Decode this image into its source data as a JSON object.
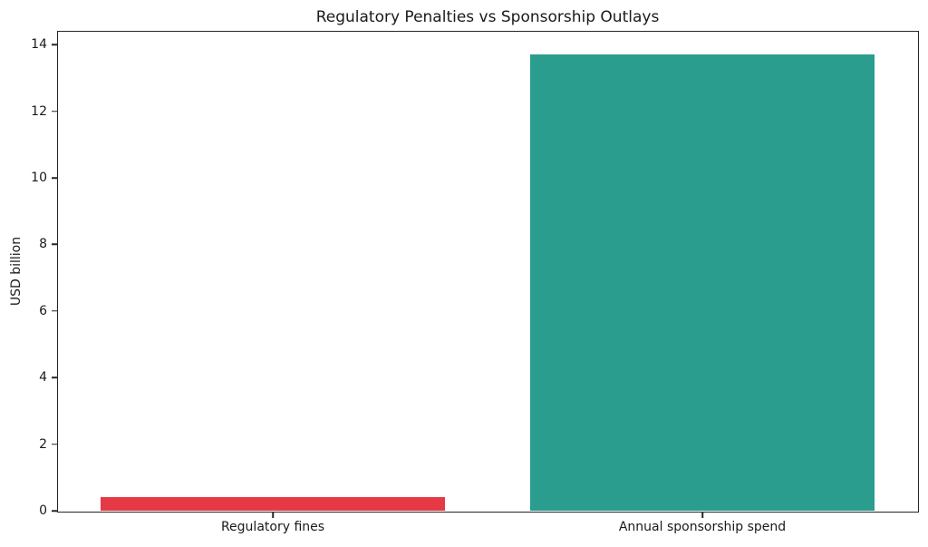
{
  "figure": {
    "background": "#ffffff"
  },
  "chart_data": {
    "type": "bar",
    "title": "Regulatory Penalties vs Sponsorship Outlays",
    "xlabel": "",
    "ylabel": "USD billion",
    "categories": [
      "Regulatory fines",
      "Annual sponsorship spend"
    ],
    "values": [
      0.4,
      13.7
    ],
    "bar_colors": [
      "#e63946",
      "#2a9d8f"
    ],
    "ylim": [
      0,
      14.39
    ],
    "yticks": [
      0,
      2,
      4,
      6,
      8,
      10,
      12,
      14
    ],
    "bar_width_fraction": 0.8,
    "grid": false,
    "legend": null,
    "spine_color": "#262626",
    "text_color": "#1a1a1a"
  }
}
